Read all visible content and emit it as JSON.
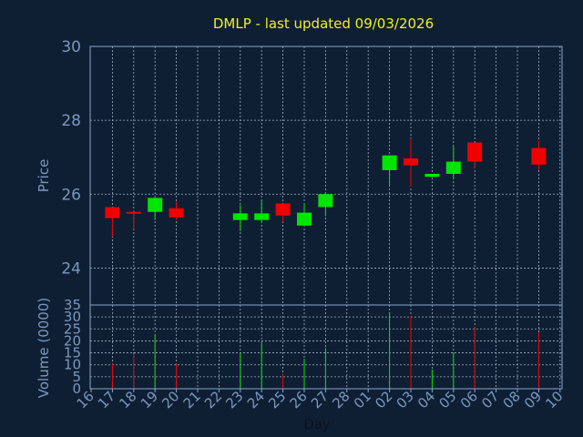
{
  "chart_data": {
    "type": "candlestick",
    "title": "DMLP - last updated 09/03/2026",
    "xlabel": "Day",
    "price_panel": {
      "ylabel": "Price",
      "ylim": [
        23,
        30
      ],
      "yticks": [
        24,
        26,
        28,
        30
      ],
      "grid": true
    },
    "volume_panel": {
      "ylabel": "Volume (0000)",
      "ylim": [
        0,
        35
      ],
      "yticks": [
        0,
        5,
        10,
        15,
        20,
        25,
        30,
        35
      ],
      "grid": true
    },
    "x_tick_labels": [
      "16",
      "17",
      "18",
      "19",
      "20",
      "21",
      "22",
      "23",
      "24",
      "25",
      "26",
      "27",
      "28",
      "01",
      "02",
      "03",
      "04",
      "05",
      "06",
      "07",
      "08",
      "09",
      "10"
    ],
    "candles": [
      {
        "day": "17",
        "open": 25.65,
        "high": 25.65,
        "low": 24.85,
        "close": 25.35,
        "volume": 10.5
      },
      {
        "day": "18",
        "open": 25.52,
        "high": 25.55,
        "low": 25.05,
        "close": 25.5,
        "volume": 14.5
      },
      {
        "day": "19",
        "open": 25.52,
        "high": 25.9,
        "low": 25.3,
        "close": 25.9,
        "volume": 22.5
      },
      {
        "day": "20",
        "open": 25.62,
        "high": 25.8,
        "low": 25.3,
        "close": 25.37,
        "volume": 10.5
      },
      {
        "day": "23",
        "open": 25.3,
        "high": 25.7,
        "low": 25.0,
        "close": 25.48,
        "volume": 15.0
      },
      {
        "day": "24",
        "open": 25.3,
        "high": 25.85,
        "low": 25.25,
        "close": 25.48,
        "volume": 19.0
      },
      {
        "day": "25",
        "open": 25.75,
        "high": 25.75,
        "low": 25.25,
        "close": 25.42,
        "volume": 6.0
      },
      {
        "day": "26",
        "open": 25.15,
        "high": 25.75,
        "low": 25.15,
        "close": 25.5,
        "volume": 12.5
      },
      {
        "day": "27",
        "open": 25.65,
        "high": 26.05,
        "low": 25.4,
        "close": 26.0,
        "volume": 17.0
      },
      {
        "day": "02",
        "open": 26.65,
        "high": 27.05,
        "low": 26.25,
        "close": 27.05,
        "volume": 32.0
      },
      {
        "day": "03",
        "open": 26.97,
        "high": 27.5,
        "low": 26.2,
        "close": 26.78,
        "volume": 30.5
      },
      {
        "day": "04",
        "open": 26.47,
        "high": 26.55,
        "low": 26.47,
        "close": 26.55,
        "volume": 8.0
      },
      {
        "day": "05",
        "open": 26.55,
        "high": 27.3,
        "low": 26.4,
        "close": 26.88,
        "volume": 15.0
      },
      {
        "day": "06",
        "open": 27.4,
        "high": 27.4,
        "low": 26.7,
        "close": 26.88,
        "volume": 26.0
      },
      {
        "day": "09",
        "open": 27.25,
        "high": 27.45,
        "low": 26.65,
        "close": 26.8,
        "volume": 23.5
      }
    ]
  },
  "colors": {
    "background": "#0f1f33",
    "frame": "#8aa4c8",
    "grid": "#9fb0c4",
    "title": "#f0f01e",
    "axis_text": "#7a98c0",
    "xlabel": "#0a1422",
    "up": "#00e600",
    "down": "#f00000"
  }
}
